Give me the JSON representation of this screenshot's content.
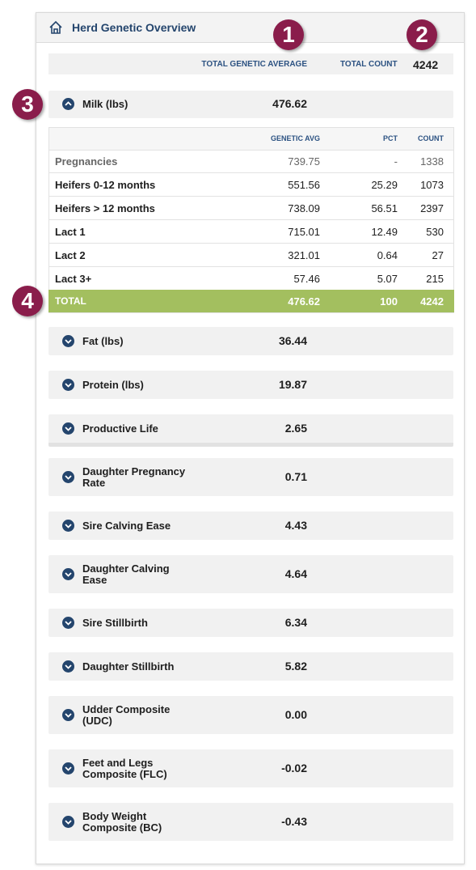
{
  "header": {
    "title": "Herd Genetic Overview"
  },
  "summary": {
    "avg_label": "TOTAL GENETIC AVERAGE",
    "count_label": "TOTAL COUNT",
    "count": "4242"
  },
  "traits": [
    {
      "label": "Milk (lbs)",
      "value": "476.62"
    },
    {
      "label": "Fat (lbs)",
      "value": "36.44"
    },
    {
      "label": "Protein (lbs)",
      "value": "19.87"
    },
    {
      "label": "Productive Life",
      "value": "2.65"
    },
    {
      "label": "Daughter Pregnancy Rate",
      "value": "0.71"
    },
    {
      "label": "Sire Calving Ease",
      "value": "4.43"
    },
    {
      "label": "Daughter Calving Ease",
      "value": "4.64"
    },
    {
      "label": "Sire Stillbirth",
      "value": "6.34"
    },
    {
      "label": "Daughter Stillbirth",
      "value": "5.82"
    },
    {
      "label": "Udder Composite (UDC)",
      "value": "0.00"
    },
    {
      "label": "Feet and Legs Composite (FLC)",
      "value": "-0.02"
    },
    {
      "label": "Body Weight Composite (BC)",
      "value": "-0.43"
    }
  ],
  "table": {
    "columns": [
      "GENETIC AVG",
      "PCT",
      "COUNT"
    ],
    "rows": [
      [
        "Pregnancies",
        "739.75",
        "-",
        "1338"
      ],
      [
        "Heifers 0-12 months",
        "551.56",
        "25.29",
        "1073"
      ],
      [
        "Heifers > 12 months",
        "738.09",
        "56.51",
        "2397"
      ],
      [
        "Lact 1",
        "715.01",
        "12.49",
        "530"
      ],
      [
        "Lact 2",
        "321.01",
        "0.64",
        "27"
      ],
      [
        "Lact 3+",
        "57.46",
        "5.07",
        "215"
      ]
    ],
    "total": [
      "TOTAL",
      "476.62",
      "100",
      "4242"
    ]
  },
  "annotations": [
    "1",
    "2",
    "3",
    "4"
  ]
}
